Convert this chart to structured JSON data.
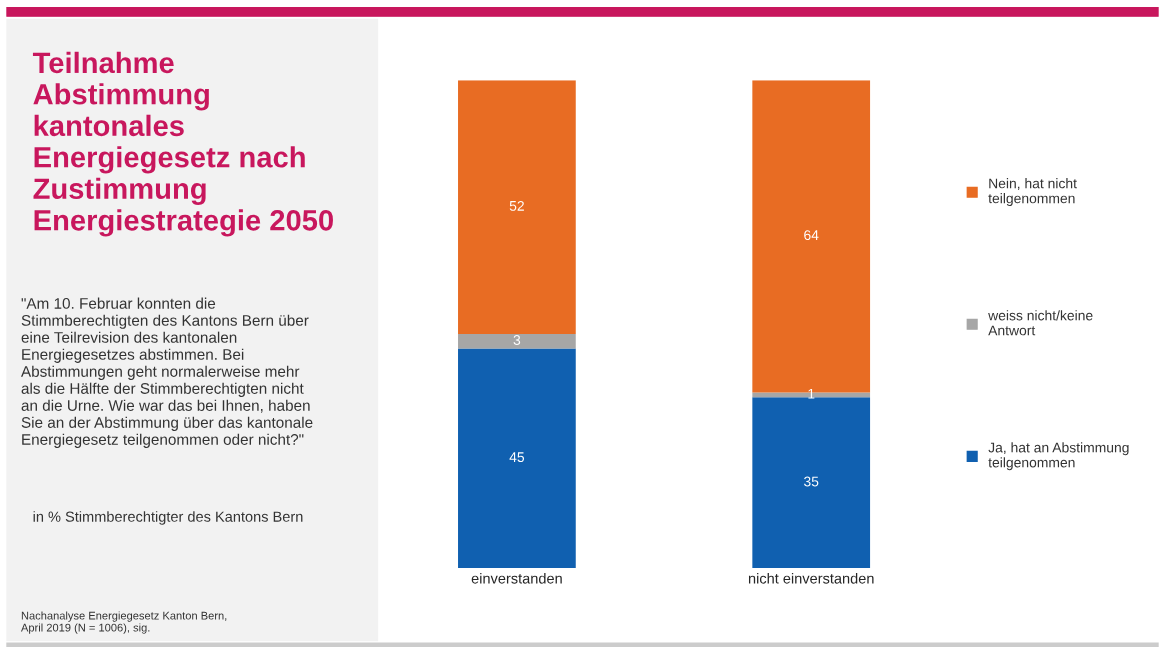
{
  "chart_data": {
    "type": "bar",
    "stacked": true,
    "title": "Teilnahme\nAbstimmung\nkantonales\nEnergiegesetz nach\nZustimmung\nEnergiestrategie 2050",
    "subtitle": "\"Am 10. Februar konnten die\nStimmberechtigten des Kantons Bern über\neine Teilrevision des kantonalen\nEnergiegesetzes abstimmen. Bei\nAbstimmungen geht normalerweise mehr\nals die Hälfte der Stimmberechtigten nicht\nan die Urne. Wie war das bei Ihnen, haben\nSie an der Abstimmung über das kantonale\nEnergiegesetz teilgenommen oder nicht?\"",
    "annotations": [
      "in % Stimmberechtigter des Kantons Bern",
      "Nachanalyse Energiegesetz Kanton Bern,\nApril 2019 (N = 1006), sig."
    ],
    "categories": [
      "einverstanden",
      "nicht einverstanden"
    ],
    "series": [
      {
        "name": "Ja, hat an Abstimmung\nteilgenommen",
        "color": "#1060b0",
        "values": [
          45,
          35
        ]
      },
      {
        "name": "weiss nicht/keine\nAntwort",
        "color": "#a6a6a6",
        "values": [
          3,
          1
        ]
      },
      {
        "name": "Nein, hat nicht\nteilgenommen",
        "color": "#e86c23",
        "values": [
          52,
          64
        ]
      }
    ],
    "data_labels": true,
    "legend": "right",
    "grid": false
  }
}
